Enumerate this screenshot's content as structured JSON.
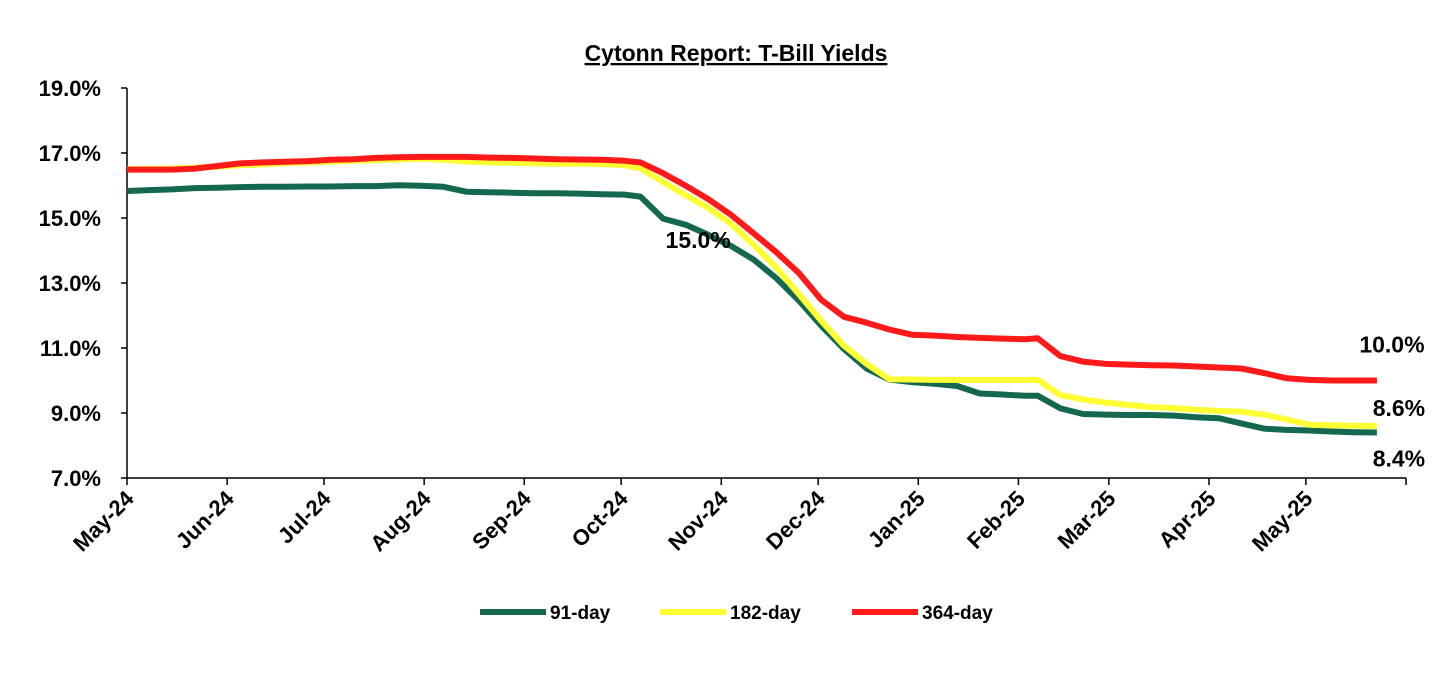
{
  "chart_data": {
    "type": "line",
    "title": "Cytonn Report: T-Bill Yields",
    "xlabel": "",
    "ylabel": "",
    "ylim": [
      7.0,
      19.0
    ],
    "yticks": [
      "7.0%",
      "9.0%",
      "11.0%",
      "13.0%",
      "15.0%",
      "17.0%",
      "19.0%"
    ],
    "xlim": [
      "2024-05-01",
      "2025-06-01"
    ],
    "xtick_dates": [
      "2024-05-01",
      "2024-06-01",
      "2024-07-01",
      "2024-08-01",
      "2024-09-01",
      "2024-10-01",
      "2024-11-01",
      "2024-12-01",
      "2025-01-01",
      "2025-02-01",
      "2025-03-01",
      "2025-04-01",
      "2025-05-01"
    ],
    "xtick_labels": [
      "May-24",
      "Jun-24",
      "Jul-24",
      "Aug-24",
      "Sep-24",
      "Oct-24",
      "Nov-24",
      "Dec-24",
      "Jan-25",
      "Feb-25",
      "Mar-25",
      "Apr-25",
      "May-25"
    ],
    "grid": false,
    "legend_position": "bottom",
    "series": [
      {
        "name": "91-day",
        "color": "#13684F",
        "points": [
          [
            "2024-05-01",
            15.83
          ],
          [
            "2024-05-08",
            15.86
          ],
          [
            "2024-05-15",
            15.88
          ],
          [
            "2024-05-22",
            15.92
          ],
          [
            "2024-05-29",
            15.93
          ],
          [
            "2024-06-05",
            15.95
          ],
          [
            "2024-06-12",
            15.96
          ],
          [
            "2024-06-19",
            15.96
          ],
          [
            "2024-06-26",
            15.97
          ],
          [
            "2024-07-03",
            15.97
          ],
          [
            "2024-07-10",
            15.98
          ],
          [
            "2024-07-17",
            15.98
          ],
          [
            "2024-07-24",
            16.01
          ],
          [
            "2024-07-31",
            15.99
          ],
          [
            "2024-08-07",
            15.96
          ],
          [
            "2024-08-14",
            15.81
          ],
          [
            "2024-08-21",
            15.79
          ],
          [
            "2024-08-28",
            15.78
          ],
          [
            "2024-09-04",
            15.76
          ],
          [
            "2024-09-11",
            15.76
          ],
          [
            "2024-09-18",
            15.75
          ],
          [
            "2024-09-25",
            15.73
          ],
          [
            "2024-10-02",
            15.72
          ],
          [
            "2024-10-07",
            15.66
          ],
          [
            "2024-10-14",
            14.98
          ],
          [
            "2024-10-21",
            14.79
          ],
          [
            "2024-10-28",
            14.48
          ],
          [
            "2024-11-04",
            14.14
          ],
          [
            "2024-11-11",
            13.72
          ],
          [
            "2024-11-18",
            13.15
          ],
          [
            "2024-11-25",
            12.46
          ],
          [
            "2024-12-02",
            11.68
          ],
          [
            "2024-12-09",
            10.97
          ],
          [
            "2024-12-16",
            10.37
          ],
          [
            "2024-12-23",
            10.03
          ],
          [
            "2024-12-30",
            9.95
          ],
          [
            "2025-01-06",
            9.9
          ],
          [
            "2025-01-13",
            9.83
          ],
          [
            "2025-01-20",
            9.6
          ],
          [
            "2025-01-27",
            9.57
          ],
          [
            "2025-02-03",
            9.53
          ],
          [
            "2025-02-07",
            9.53
          ],
          [
            "2025-02-14",
            9.14
          ],
          [
            "2025-02-21",
            8.97
          ],
          [
            "2025-02-28",
            8.95
          ],
          [
            "2025-03-07",
            8.94
          ],
          [
            "2025-03-14",
            8.94
          ],
          [
            "2025-03-21",
            8.92
          ],
          [
            "2025-03-28",
            8.87
          ],
          [
            "2025-04-04",
            8.84
          ],
          [
            "2025-04-11",
            8.68
          ],
          [
            "2025-04-18",
            8.52
          ],
          [
            "2025-04-25",
            8.48
          ],
          [
            "2025-05-02",
            8.46
          ],
          [
            "2025-05-09",
            8.43
          ],
          [
            "2025-05-16",
            8.41
          ],
          [
            "2025-05-23",
            8.4
          ]
        ]
      },
      {
        "name": "182-day",
        "color": "#FFFF33",
        "points": [
          [
            "2024-05-01",
            16.5
          ],
          [
            "2024-05-08",
            16.51
          ],
          [
            "2024-05-15",
            16.52
          ],
          [
            "2024-05-22",
            16.55
          ],
          [
            "2024-05-29",
            16.58
          ],
          [
            "2024-06-05",
            16.62
          ],
          [
            "2024-06-12",
            16.65
          ],
          [
            "2024-06-19",
            16.69
          ],
          [
            "2024-06-26",
            16.71
          ],
          [
            "2024-07-03",
            16.73
          ],
          [
            "2024-07-10",
            16.76
          ],
          [
            "2024-07-17",
            16.78
          ],
          [
            "2024-07-24",
            16.8
          ],
          [
            "2024-07-31",
            16.82
          ],
          [
            "2024-08-07",
            16.79
          ],
          [
            "2024-08-14",
            16.74
          ],
          [
            "2024-08-21",
            16.71
          ],
          [
            "2024-08-28",
            16.7
          ],
          [
            "2024-09-04",
            16.68
          ],
          [
            "2024-09-11",
            16.67
          ],
          [
            "2024-09-18",
            16.67
          ],
          [
            "2024-09-25",
            16.66
          ],
          [
            "2024-10-02",
            16.62
          ],
          [
            "2024-10-07",
            16.53
          ],
          [
            "2024-10-14",
            16.11
          ],
          [
            "2024-10-21",
            15.7
          ],
          [
            "2024-10-28",
            15.31
          ],
          [
            "2024-11-04",
            14.82
          ],
          [
            "2024-11-11",
            14.18
          ],
          [
            "2024-11-18",
            13.48
          ],
          [
            "2024-11-25",
            12.66
          ],
          [
            "2024-12-02",
            11.83
          ],
          [
            "2024-12-09",
            11.07
          ],
          [
            "2024-12-16",
            10.51
          ],
          [
            "2024-12-23",
            10.04
          ],
          [
            "2024-12-30",
            10.03
          ],
          [
            "2025-01-06",
            10.02
          ],
          [
            "2025-01-13",
            10.02
          ],
          [
            "2025-01-20",
            10.02
          ],
          [
            "2025-01-27",
            10.02
          ],
          [
            "2025-02-03",
            10.02
          ],
          [
            "2025-02-07",
            10.02
          ],
          [
            "2025-02-14",
            9.55
          ],
          [
            "2025-02-21",
            9.42
          ],
          [
            "2025-02-28",
            9.32
          ],
          [
            "2025-03-07",
            9.25
          ],
          [
            "2025-03-14",
            9.18
          ],
          [
            "2025-03-21",
            9.15
          ],
          [
            "2025-03-28",
            9.1
          ],
          [
            "2025-04-04",
            9.06
          ],
          [
            "2025-04-11",
            9.04
          ],
          [
            "2025-04-18",
            8.95
          ],
          [
            "2025-04-25",
            8.8
          ],
          [
            "2025-05-02",
            8.64
          ],
          [
            "2025-05-09",
            8.62
          ],
          [
            "2025-05-16",
            8.61
          ],
          [
            "2025-05-23",
            8.6
          ]
        ]
      },
      {
        "name": "364-day",
        "color": "#FF1A1A",
        "points": [
          [
            "2024-05-01",
            16.49
          ],
          [
            "2024-05-08",
            16.49
          ],
          [
            "2024-05-15",
            16.49
          ],
          [
            "2024-05-22",
            16.52
          ],
          [
            "2024-05-29",
            16.6
          ],
          [
            "2024-06-05",
            16.68
          ],
          [
            "2024-06-12",
            16.71
          ],
          [
            "2024-06-19",
            16.73
          ],
          [
            "2024-06-26",
            16.75
          ],
          [
            "2024-07-03",
            16.79
          ],
          [
            "2024-07-10",
            16.81
          ],
          [
            "2024-07-17",
            16.85
          ],
          [
            "2024-07-24",
            16.87
          ],
          [
            "2024-07-31",
            16.88
          ],
          [
            "2024-08-07",
            16.88
          ],
          [
            "2024-08-14",
            16.88
          ],
          [
            "2024-08-21",
            16.86
          ],
          [
            "2024-08-28",
            16.85
          ],
          [
            "2024-09-04",
            16.83
          ],
          [
            "2024-09-11",
            16.81
          ],
          [
            "2024-09-18",
            16.8
          ],
          [
            "2024-09-25",
            16.79
          ],
          [
            "2024-10-02",
            16.76
          ],
          [
            "2024-10-07",
            16.71
          ],
          [
            "2024-10-14",
            16.38
          ],
          [
            "2024-10-21",
            15.99
          ],
          [
            "2024-10-28",
            15.58
          ],
          [
            "2024-11-04",
            15.1
          ],
          [
            "2024-11-11",
            14.53
          ],
          [
            "2024-11-18",
            13.95
          ],
          [
            "2024-11-25",
            13.31
          ],
          [
            "2024-12-02",
            12.48
          ],
          [
            "2024-12-09",
            11.96
          ],
          [
            "2024-12-16",
            11.78
          ],
          [
            "2024-12-23",
            11.57
          ],
          [
            "2024-12-30",
            11.41
          ],
          [
            "2025-01-06",
            11.38
          ],
          [
            "2025-01-13",
            11.34
          ],
          [
            "2025-01-20",
            11.31
          ],
          [
            "2025-01-27",
            11.29
          ],
          [
            "2025-02-03",
            11.27
          ],
          [
            "2025-02-07",
            11.3
          ],
          [
            "2025-02-14",
            10.75
          ],
          [
            "2025-02-21",
            10.58
          ],
          [
            "2025-02-28",
            10.51
          ],
          [
            "2025-03-07",
            10.49
          ],
          [
            "2025-03-14",
            10.47
          ],
          [
            "2025-03-21",
            10.46
          ],
          [
            "2025-03-28",
            10.43
          ],
          [
            "2025-04-04",
            10.4
          ],
          [
            "2025-04-11",
            10.37
          ],
          [
            "2025-04-18",
            10.23
          ],
          [
            "2025-04-25",
            10.07
          ],
          [
            "2025-05-02",
            10.02
          ],
          [
            "2025-05-09",
            10.0
          ],
          [
            "2025-05-16",
            10.0
          ],
          [
            "2025-05-23",
            10.0
          ]
        ]
      }
    ],
    "annotations": [
      {
        "text": "15.0%",
        "x": "2024-10-14",
        "y": 15.0,
        "position": "below"
      },
      {
        "text": "10.0%",
        "x": "2025-05-23",
        "y": 10.0,
        "position": "above"
      },
      {
        "text": "8.6%",
        "x": "2025-05-23",
        "y": 8.6,
        "position": "above"
      },
      {
        "text": "8.4%",
        "x": "2025-05-23",
        "y": 8.4,
        "position": "below"
      }
    ]
  }
}
